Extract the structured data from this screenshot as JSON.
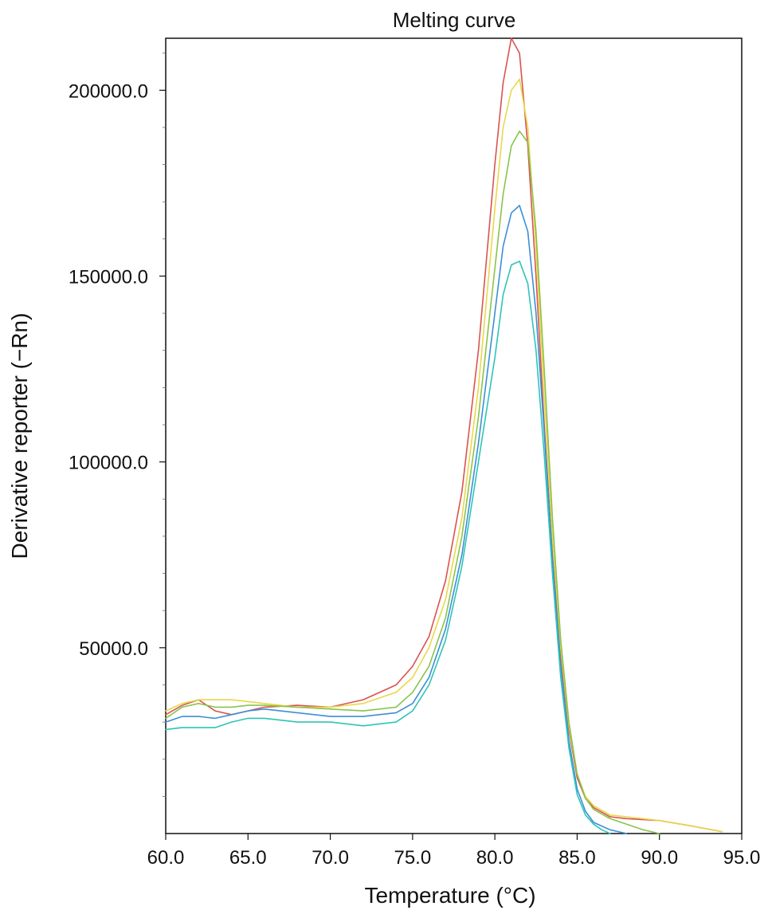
{
  "chart_data": {
    "type": "line",
    "title": "Melting curve",
    "xlabel": "Temperature (°C)",
    "ylabel": "Derivative reporter (−Rn)",
    "xlim": [
      60.0,
      95.0
    ],
    "ylim": [
      0,
      214000
    ],
    "x_ticks": [
      {
        "value": 60,
        "label": "60.0"
      },
      {
        "value": 65,
        "label": "65.0"
      },
      {
        "value": 70,
        "label": "70.0"
      },
      {
        "value": 75,
        "label": "75.0"
      },
      {
        "value": 80,
        "label": "80.0"
      },
      {
        "value": 85,
        "label": "85.0"
      },
      {
        "value": 90,
        "label": "90.0"
      },
      {
        "value": 95,
        "label": "95.0"
      }
    ],
    "y_ticks": [
      {
        "value": 50000,
        "label": "50000.0"
      },
      {
        "value": 100000,
        "label": "100000.0"
      },
      {
        "value": 150000,
        "label": "150000.0"
      },
      {
        "value": 200000,
        "label": "200000.0"
      }
    ],
    "y_minor_ticks": [
      10000,
      20000,
      30000,
      40000,
      60000,
      70000,
      80000,
      90000,
      110000,
      120000,
      130000,
      140000,
      160000,
      170000,
      180000,
      190000,
      210000
    ],
    "series": [
      {
        "color": "#d9534f",
        "points": [
          [
            60,
            32000
          ],
          [
            61,
            34500
          ],
          [
            62,
            36000
          ],
          [
            63,
            33000
          ],
          [
            64,
            32000
          ],
          [
            65,
            33000
          ],
          [
            66,
            34000
          ],
          [
            68,
            34500
          ],
          [
            70,
            34000
          ],
          [
            72,
            36000
          ],
          [
            74,
            40000
          ],
          [
            75,
            45000
          ],
          [
            76,
            53000
          ],
          [
            77,
            68000
          ],
          [
            78,
            92000
          ],
          [
            79,
            130000
          ],
          [
            80,
            180000
          ],
          [
            80.5,
            202000
          ],
          [
            81,
            214000
          ],
          [
            81.5,
            210000
          ],
          [
            82,
            185000
          ],
          [
            82.5,
            150000
          ],
          [
            83,
            110000
          ],
          [
            83.5,
            75000
          ],
          [
            84,
            48000
          ],
          [
            84.5,
            28000
          ],
          [
            85,
            15000
          ],
          [
            85.5,
            9500
          ],
          [
            86,
            7000
          ],
          [
            87,
            4500
          ],
          [
            88,
            4000
          ],
          [
            90,
            3500
          ],
          [
            92,
            2000
          ],
          [
            93.8,
            500
          ]
        ]
      },
      {
        "color": "#e8d84a",
        "points": [
          [
            60,
            33000
          ],
          [
            61,
            35000
          ],
          [
            62,
            36000
          ],
          [
            63,
            36000
          ],
          [
            64,
            36000
          ],
          [
            65,
            35500
          ],
          [
            66,
            35000
          ],
          [
            68,
            34000
          ],
          [
            70,
            34000
          ],
          [
            72,
            35000
          ],
          [
            74,
            38000
          ],
          [
            75,
            42000
          ],
          [
            76,
            50000
          ],
          [
            77,
            63000
          ],
          [
            78,
            85000
          ],
          [
            79,
            120000
          ],
          [
            80,
            168000
          ],
          [
            80.5,
            190000
          ],
          [
            81,
            200000
          ],
          [
            81.5,
            203000
          ],
          [
            82,
            190000
          ],
          [
            82.5,
            158000
          ],
          [
            83,
            118000
          ],
          [
            83.5,
            80000
          ],
          [
            84,
            50000
          ],
          [
            84.5,
            29000
          ],
          [
            85,
            16000
          ],
          [
            85.5,
            10000
          ],
          [
            86,
            7500
          ],
          [
            87,
            5000
          ],
          [
            88,
            4500
          ],
          [
            90,
            3500
          ],
          [
            92,
            2000
          ],
          [
            93.8,
            500
          ]
        ]
      },
      {
        "color": "#8bc34a",
        "points": [
          [
            60,
            31000
          ],
          [
            61,
            34000
          ],
          [
            62,
            35000
          ],
          [
            63,
            34000
          ],
          [
            64,
            34000
          ],
          [
            65,
            34500
          ],
          [
            66,
            34500
          ],
          [
            68,
            34000
          ],
          [
            70,
            33500
          ],
          [
            72,
            33000
          ],
          [
            74,
            34000
          ],
          [
            75,
            38000
          ],
          [
            76,
            45000
          ],
          [
            77,
            58000
          ],
          [
            78,
            80000
          ],
          [
            79,
            112000
          ],
          [
            80,
            152000
          ],
          [
            80.5,
            172000
          ],
          [
            81,
            185000
          ],
          [
            81.5,
            189000
          ],
          [
            82,
            186000
          ],
          [
            82.5,
            162000
          ],
          [
            83,
            125000
          ],
          [
            83.5,
            85000
          ],
          [
            84,
            52000
          ],
          [
            84.5,
            30000
          ],
          [
            85,
            16000
          ],
          [
            85.5,
            9500
          ],
          [
            86,
            6500
          ],
          [
            87,
            4000
          ],
          [
            88,
            2500
          ],
          [
            89,
            1000
          ],
          [
            90,
            0
          ]
        ]
      },
      {
        "color": "#3b8fd6",
        "points": [
          [
            60,
            30000
          ],
          [
            61,
            31500
          ],
          [
            62,
            31500
          ],
          [
            63,
            31000
          ],
          [
            64,
            32000
          ],
          [
            65,
            33000
          ],
          [
            66,
            33500
          ],
          [
            68,
            32500
          ],
          [
            70,
            31500
          ],
          [
            72,
            31500
          ],
          [
            74,
            32500
          ],
          [
            75,
            35000
          ],
          [
            76,
            42000
          ],
          [
            77,
            55000
          ],
          [
            78,
            75000
          ],
          [
            79,
            105000
          ],
          [
            80,
            140000
          ],
          [
            80.5,
            158000
          ],
          [
            81,
            167000
          ],
          [
            81.5,
            169000
          ],
          [
            82,
            162000
          ],
          [
            82.5,
            140000
          ],
          [
            83,
            108000
          ],
          [
            83.5,
            74000
          ],
          [
            84,
            45000
          ],
          [
            84.5,
            25000
          ],
          [
            85,
            12000
          ],
          [
            85.5,
            6000
          ],
          [
            86,
            3000
          ],
          [
            87,
            1000
          ],
          [
            88,
            0
          ]
        ]
      },
      {
        "color": "#2ec4b6",
        "points": [
          [
            60,
            28000
          ],
          [
            61,
            28500
          ],
          [
            62,
            28500
          ],
          [
            63,
            28500
          ],
          [
            64,
            30000
          ],
          [
            65,
            31000
          ],
          [
            66,
            31000
          ],
          [
            68,
            30000
          ],
          [
            70,
            30000
          ],
          [
            72,
            29000
          ],
          [
            74,
            30000
          ],
          [
            75,
            33000
          ],
          [
            76,
            40000
          ],
          [
            77,
            52000
          ],
          [
            78,
            72000
          ],
          [
            79,
            100000
          ],
          [
            80,
            128000
          ],
          [
            80.5,
            145000
          ],
          [
            81,
            153000
          ],
          [
            81.5,
            154000
          ],
          [
            82,
            148000
          ],
          [
            82.5,
            130000
          ],
          [
            83,
            102000
          ],
          [
            83.5,
            70000
          ],
          [
            84,
            42000
          ],
          [
            84.5,
            23000
          ],
          [
            85,
            10500
          ],
          [
            85.5,
            5000
          ],
          [
            86,
            2500
          ],
          [
            86.5,
            1000
          ],
          [
            87,
            0
          ]
        ]
      }
    ]
  }
}
